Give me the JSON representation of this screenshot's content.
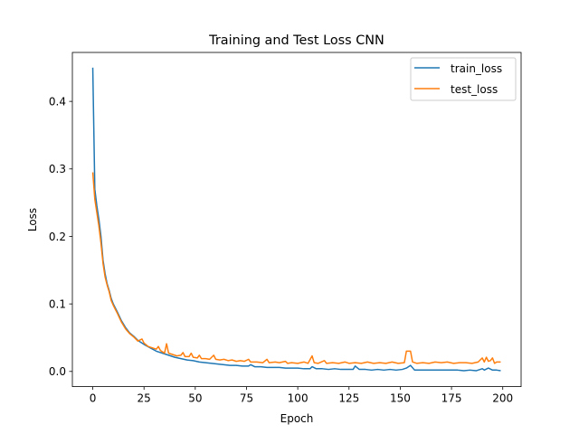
{
  "chart_data": {
    "type": "line",
    "title": "Training and Test Loss CNN",
    "xlabel": "Epoch",
    "ylabel": "Loss",
    "xlim": [
      -9.95,
      208.95
    ],
    "ylim": [
      -0.0225,
      0.4725
    ],
    "xticks": [
      0,
      25,
      50,
      75,
      100,
      125,
      150,
      175,
      200
    ],
    "yticks": [
      0.0,
      0.1,
      0.2,
      0.3,
      0.4
    ],
    "ytick_labels": [
      "0.0",
      "0.1",
      "0.2",
      "0.3",
      "0.4"
    ],
    "grid": false,
    "legend_position": "top-right",
    "series": [
      {
        "name": "train_loss",
        "color": "#1f77b4",
        "points": [
          [
            0,
            0.45
          ],
          [
            1,
            0.27
          ],
          [
            2,
            0.245
          ],
          [
            3,
            0.225
          ],
          [
            4,
            0.2
          ],
          [
            5,
            0.165
          ],
          [
            6,
            0.145
          ],
          [
            7,
            0.13
          ],
          [
            8,
            0.12
          ],
          [
            9,
            0.108
          ],
          [
            10,
            0.1
          ],
          [
            12,
            0.088
          ],
          [
            14,
            0.075
          ],
          [
            16,
            0.065
          ],
          [
            18,
            0.057
          ],
          [
            20,
            0.052
          ],
          [
            22,
            0.046
          ],
          [
            25,
            0.04
          ],
          [
            28,
            0.035
          ],
          [
            31,
            0.03
          ],
          [
            34,
            0.027
          ],
          [
            37,
            0.024
          ],
          [
            40,
            0.021
          ],
          [
            43,
            0.019
          ],
          [
            46,
            0.017
          ],
          [
            49,
            0.016
          ],
          [
            52,
            0.014
          ],
          [
            55,
            0.013
          ],
          [
            58,
            0.012
          ],
          [
            61,
            0.011
          ],
          [
            64,
            0.01
          ],
          [
            67,
            0.009
          ],
          [
            70,
            0.009
          ],
          [
            73,
            0.008
          ],
          [
            76,
            0.008
          ],
          [
            77,
            0.01
          ],
          [
            79,
            0.007
          ],
          [
            82,
            0.007
          ],
          [
            85,
            0.006
          ],
          [
            88,
            0.006
          ],
          [
            91,
            0.006
          ],
          [
            94,
            0.005
          ],
          [
            97,
            0.005
          ],
          [
            100,
            0.005
          ],
          [
            103,
            0.004
          ],
          [
            106,
            0.004
          ],
          [
            107,
            0.007
          ],
          [
            109,
            0.004
          ],
          [
            112,
            0.004
          ],
          [
            115,
            0.003
          ],
          [
            118,
            0.004
          ],
          [
            121,
            0.003
          ],
          [
            124,
            0.003
          ],
          [
            127,
            0.003
          ],
          [
            128,
            0.008
          ],
          [
            130,
            0.003
          ],
          [
            133,
            0.003
          ],
          [
            136,
            0.002
          ],
          [
            139,
            0.003
          ],
          [
            142,
            0.002
          ],
          [
            145,
            0.003
          ],
          [
            148,
            0.002
          ],
          [
            151,
            0.003
          ],
          [
            153,
            0.005
          ],
          [
            155,
            0.009
          ],
          [
            157,
            0.002
          ],
          [
            160,
            0.002
          ],
          [
            163,
            0.002
          ],
          [
            166,
            0.002
          ],
          [
            169,
            0.002
          ],
          [
            172,
            0.002
          ],
          [
            175,
            0.002
          ],
          [
            178,
            0.002
          ],
          [
            181,
            0.001
          ],
          [
            184,
            0.002
          ],
          [
            187,
            0.001
          ],
          [
            190,
            0.004
          ],
          [
            191,
            0.002
          ],
          [
            193,
            0.005
          ],
          [
            195,
            0.002
          ],
          [
            197,
            0.002
          ],
          [
            199,
            0.001
          ]
        ]
      },
      {
        "name": "test_loss",
        "color": "#ff7f0e",
        "points": [
          [
            0,
            0.295
          ],
          [
            1,
            0.255
          ],
          [
            2,
            0.235
          ],
          [
            3,
            0.215
          ],
          [
            4,
            0.19
          ],
          [
            5,
            0.16
          ],
          [
            6,
            0.14
          ],
          [
            7,
            0.128
          ],
          [
            8,
            0.118
          ],
          [
            9,
            0.105
          ],
          [
            10,
            0.098
          ],
          [
            12,
            0.086
          ],
          [
            14,
            0.073
          ],
          [
            16,
            0.063
          ],
          [
            18,
            0.056
          ],
          [
            20,
            0.051
          ],
          [
            22,
            0.045
          ],
          [
            24,
            0.048
          ],
          [
            25,
            0.042
          ],
          [
            27,
            0.037
          ],
          [
            29,
            0.035
          ],
          [
            31,
            0.033
          ],
          [
            32,
            0.037
          ],
          [
            33,
            0.031
          ],
          [
            35,
            0.027
          ],
          [
            36,
            0.041
          ],
          [
            37,
            0.027
          ],
          [
            39,
            0.025
          ],
          [
            41,
            0.023
          ],
          [
            43,
            0.024
          ],
          [
            44,
            0.028
          ],
          [
            45,
            0.022
          ],
          [
            47,
            0.022
          ],
          [
            48,
            0.027
          ],
          [
            49,
            0.021
          ],
          [
            51,
            0.02
          ],
          [
            52,
            0.024
          ],
          [
            53,
            0.019
          ],
          [
            55,
            0.019
          ],
          [
            57,
            0.018
          ],
          [
            59,
            0.024
          ],
          [
            60,
            0.018
          ],
          [
            62,
            0.017
          ],
          [
            64,
            0.018
          ],
          [
            66,
            0.016
          ],
          [
            68,
            0.017
          ],
          [
            70,
            0.015
          ],
          [
            72,
            0.016
          ],
          [
            74,
            0.015
          ],
          [
            76,
            0.018
          ],
          [
            77,
            0.014
          ],
          [
            80,
            0.014
          ],
          [
            83,
            0.013
          ],
          [
            85,
            0.018
          ],
          [
            86,
            0.013
          ],
          [
            89,
            0.014
          ],
          [
            91,
            0.013
          ],
          [
            94,
            0.015
          ],
          [
            95,
            0.012
          ],
          [
            97,
            0.013
          ],
          [
            100,
            0.012
          ],
          [
            103,
            0.014
          ],
          [
            105,
            0.012
          ],
          [
            107,
            0.023
          ],
          [
            108,
            0.013
          ],
          [
            110,
            0.012
          ],
          [
            113,
            0.016
          ],
          [
            114,
            0.012
          ],
          [
            117,
            0.013
          ],
          [
            120,
            0.012
          ],
          [
            123,
            0.014
          ],
          [
            125,
            0.012
          ],
          [
            128,
            0.013
          ],
          [
            131,
            0.012
          ],
          [
            134,
            0.014
          ],
          [
            137,
            0.012
          ],
          [
            140,
            0.013
          ],
          [
            143,
            0.012
          ],
          [
            146,
            0.014
          ],
          [
            149,
            0.012
          ],
          [
            152,
            0.013
          ],
          [
            153,
            0.03
          ],
          [
            155,
            0.03
          ],
          [
            156,
            0.014
          ],
          [
            158,
            0.012
          ],
          [
            161,
            0.013
          ],
          [
            164,
            0.012
          ],
          [
            167,
            0.014
          ],
          [
            170,
            0.013
          ],
          [
            173,
            0.014
          ],
          [
            176,
            0.012
          ],
          [
            179,
            0.013
          ],
          [
            182,
            0.013
          ],
          [
            185,
            0.012
          ],
          [
            188,
            0.014
          ],
          [
            190,
            0.02
          ],
          [
            191,
            0.014
          ],
          [
            192,
            0.021
          ],
          [
            193,
            0.015
          ],
          [
            194,
            0.016
          ],
          [
            195,
            0.02
          ],
          [
            196,
            0.012
          ],
          [
            197,
            0.014
          ],
          [
            199,
            0.014
          ]
        ]
      }
    ]
  }
}
